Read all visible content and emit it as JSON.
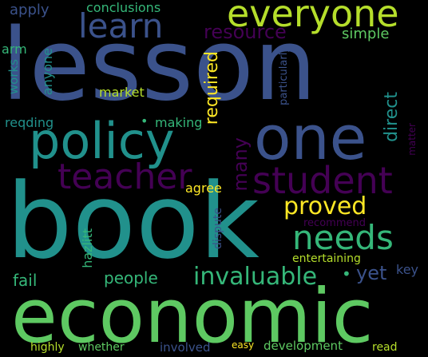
{
  "background": "#000000",
  "palette": {
    "dark_purple": "#440154",
    "indigo": "#3b528b",
    "blue": "#31688e",
    "teal": "#21918c",
    "green": "#35b779",
    "light_green": "#5ec962",
    "lime": "#b5de2b",
    "yellow": "#fde725"
  },
  "words": {
    "lesson": "lesson",
    "book": "book",
    "economic": "economic",
    "one": "one",
    "policy": "policy",
    "student": "student",
    "teacher": "teacher",
    "everyone": "everyone",
    "learn": "learn",
    "needs": "needs",
    "invaluable": "invaluable",
    "proved": "proved",
    "resource": "resource",
    "required": "required",
    "simple": "simple",
    "people": "people",
    "fail": "fail",
    "yet": "yet",
    "many": "many",
    "direct": "direct",
    "apply": "apply",
    "conclusions": "conclusions",
    "arm": "arm",
    "works": "works",
    "anyone": "anyone",
    "market": "market",
    "particularly": "particularly",
    "reqding": "reqding",
    "making": "making",
    "matter": "matter",
    "agree": "agree",
    "hazlitt": "hazlitt",
    "dispute": "dispute",
    "recommend": "recommend",
    "entertaining": "entertaining",
    "key": "key",
    "highly": "highly",
    "whether": "whether",
    "involved": "involved",
    "easy": "easy",
    "development": "development",
    "read": "read"
  }
}
